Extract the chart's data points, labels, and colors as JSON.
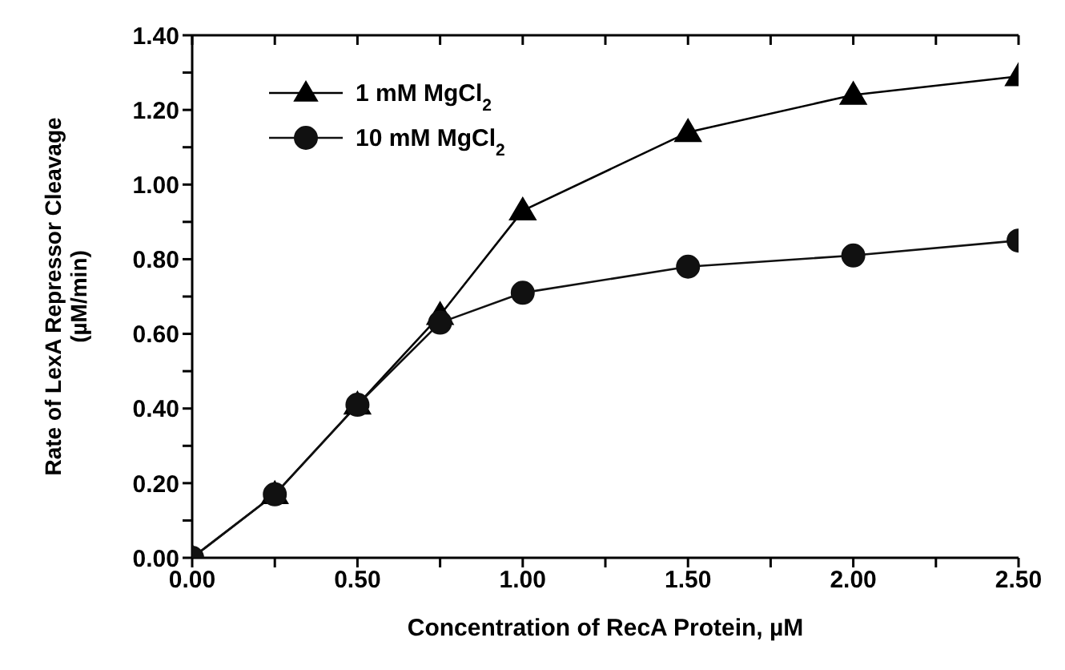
{
  "chart_data": {
    "type": "line",
    "xlabel": "Concentration of RecA Protein, µM",
    "ylabel": "Rate of LexA Repressor Cleavage\n(µM/min)",
    "x": [
      0,
      0.25,
      0.5,
      0.75,
      1.0,
      1.5,
      2.0,
      2.5
    ],
    "series": [
      {
        "name": "1 mM MgCl$_{2}$",
        "color": "#000000",
        "marker": "triangle",
        "values": [
          0,
          0.17,
          0.41,
          0.65,
          0.93,
          1.14,
          1.24,
          1.29
        ]
      },
      {
        "name": "10 mM MgCl$_{2}$",
        "color": "#111111",
        "marker": "circle",
        "values": [
          0,
          0.17,
          0.41,
          0.63,
          0.71,
          0.78,
          0.81,
          0.85
        ]
      }
    ],
    "xlim": [
      0,
      2.5
    ],
    "xticks": [
      {
        "value": 0,
        "label": "0.00"
      },
      {
        "value": 0.25,
        "label": null
      },
      {
        "value": 0.5,
        "label": "0.50"
      },
      {
        "value": 0.75,
        "label": null
      },
      {
        "value": 1.0,
        "label": "1.00"
      },
      {
        "value": 1.25,
        "label": null
      },
      {
        "value": 1.5,
        "label": "1.50"
      },
      {
        "value": 1.75,
        "label": null
      },
      {
        "value": 2.0,
        "label": "2.00"
      },
      {
        "value": 2.25,
        "label": null
      },
      {
        "value": 2.5,
        "label": "2.50"
      }
    ],
    "ylim": [
      0,
      1.4
    ],
    "yticks": [
      {
        "value": 0,
        "label": "0.00"
      },
      {
        "value": 0.1,
        "label": null
      },
      {
        "value": 0.2,
        "label": "0.20"
      },
      {
        "value": 0.3,
        "label": null
      },
      {
        "value": 0.4,
        "label": "0.40"
      },
      {
        "value": 0.5,
        "label": null
      },
      {
        "value": 0.6,
        "label": "0.60"
      },
      {
        "value": 0.7,
        "label": null
      },
      {
        "value": 0.8,
        "label": "0.80"
      },
      {
        "value": 0.9,
        "label": null
      },
      {
        "value": 1.0,
        "label": "1.00"
      },
      {
        "value": 1.1,
        "label": null
      },
      {
        "value": 1.2,
        "label": "1.20"
      },
      {
        "value": 1.3,
        "label": null
      },
      {
        "value": 1.4,
        "label": "1.40"
      }
    ],
    "grid": false,
    "legend": "top left",
    "line_style": "solid"
  }
}
